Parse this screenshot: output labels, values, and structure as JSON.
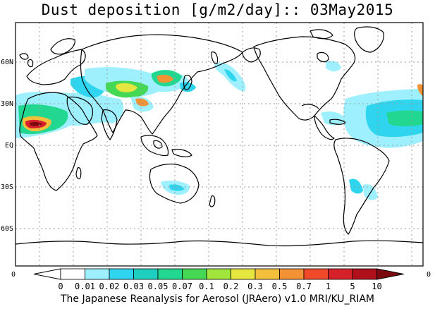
{
  "title": "Dust deposition [g/m2/day]:: 03May2015",
  "lat_labels": [
    "60N",
    "30N",
    "EQ",
    "30S",
    "60S"
  ],
  "corner_labels": {
    "left": "0",
    "right": "0"
  },
  "colorbar": {
    "labels": [
      "0",
      "0.01",
      "0.02",
      "0.03",
      "0.05",
      "0.07",
      "0.1",
      "0.2",
      "0.3",
      "0.5",
      "0.7",
      "1",
      "5",
      "10"
    ],
    "colors": [
      "#ffffff",
      "#9ff0ff",
      "#2fd5ef",
      "#1ecfc0",
      "#22d890",
      "#45d855",
      "#a0e43c",
      "#e6e640",
      "#f4c03c",
      "#f39234",
      "#f04a2a",
      "#d6202a",
      "#b0101c",
      "#7a0a10"
    ]
  },
  "footer": "The Japanese Reanalysis for Aerosol (JRAero) v1.0 MRI/KU_RIAM"
}
